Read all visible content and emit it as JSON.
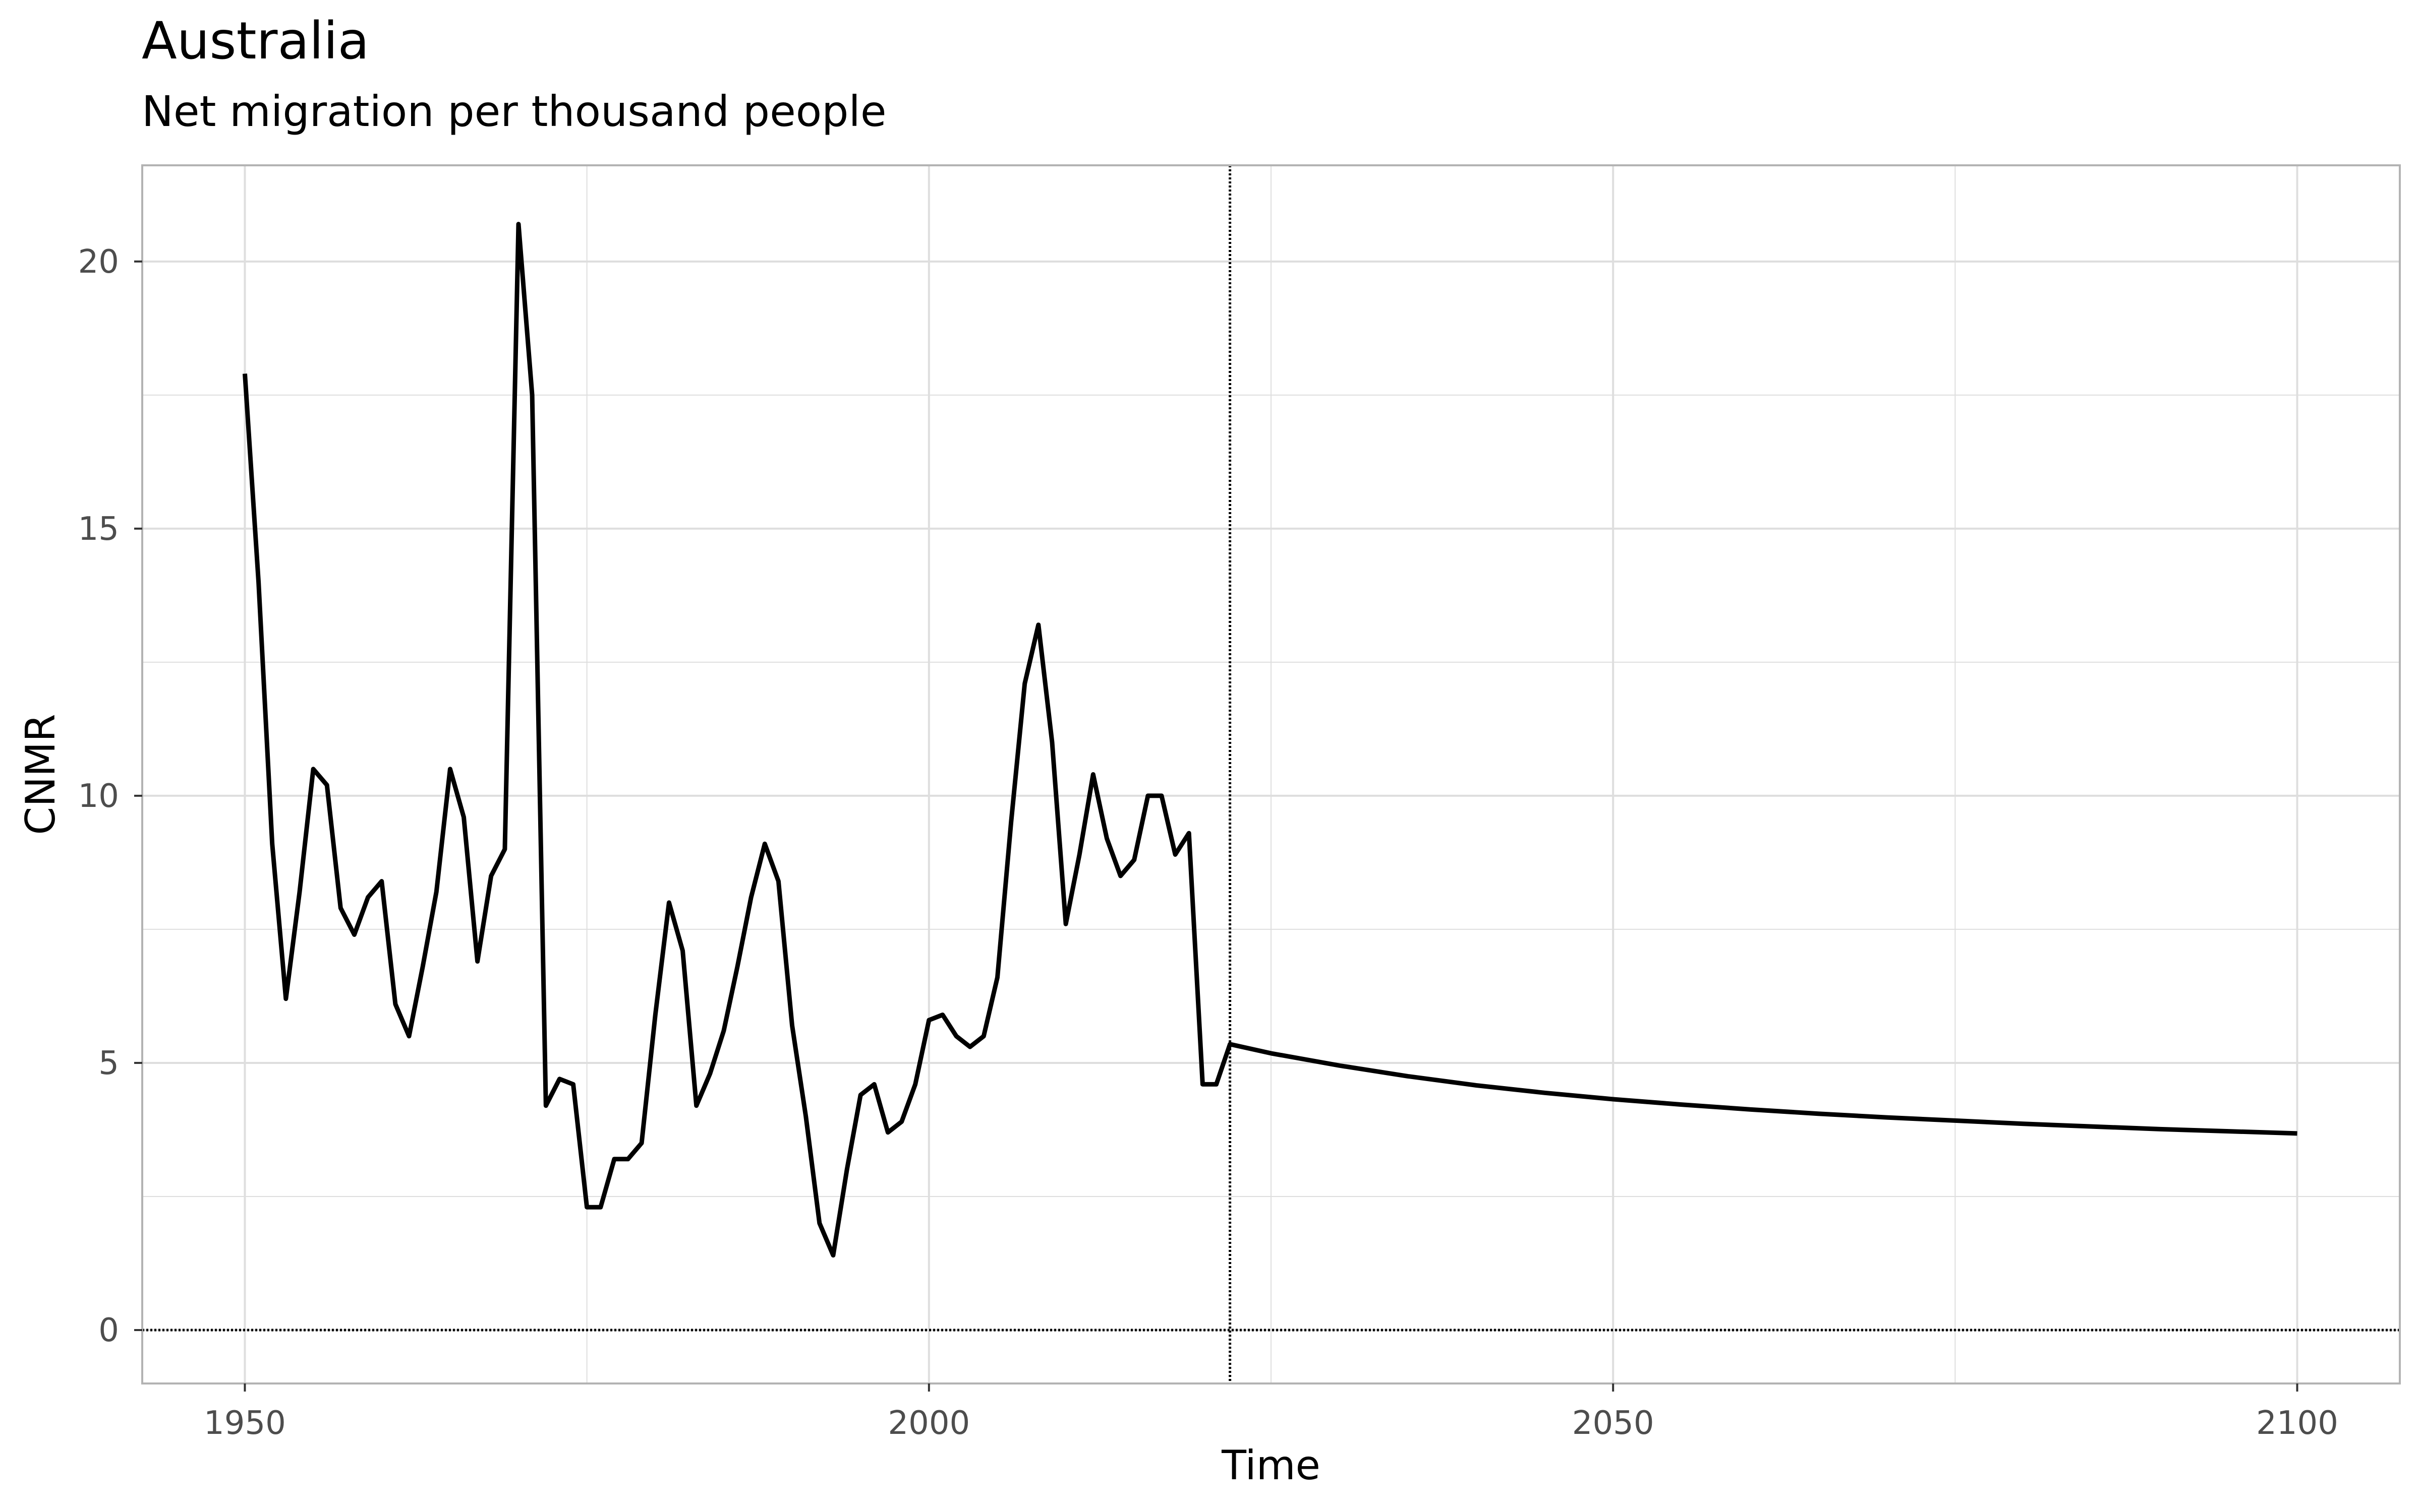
{
  "chart_data": {
    "type": "line",
    "title": "Australia",
    "subtitle": "Net migration per thousand people",
    "xlabel": "Time",
    "ylabel": "CNMR",
    "xlim": [
      1942.5,
      2107.5
    ],
    "ylim": [
      -1.0,
      21.8
    ],
    "x_ticks": [
      1950,
      2000,
      2050,
      2100
    ],
    "x_tick_labels": [
      "1950",
      "2000",
      "2050",
      "2100"
    ],
    "y_ticks": [
      0,
      5,
      10,
      15,
      20
    ],
    "y_tick_labels": [
      "0",
      "5",
      "10",
      "15",
      "20"
    ],
    "grid": true,
    "reference_lines": {
      "vertical_x": 2022,
      "horizontal_y": 0,
      "style": "dotted"
    },
    "colors": {
      "line": "#000000",
      "grid": "#dedede",
      "panel_border": "#b3b3b3"
    },
    "series": [
      {
        "values_x": [
          1950,
          1951,
          1952,
          1953,
          1954,
          1955,
          1956,
          1957,
          1958,
          1959,
          1960,
          1961,
          1962,
          1963,
          1964,
          1965,
          1966,
          1967,
          1968,
          1969,
          1970,
          1971,
          1972,
          1973,
          1974,
          1975,
          1976,
          1977,
          1978,
          1979,
          1980,
          1981,
          1982,
          1983,
          1984,
          1985,
          1986,
          1987,
          1988,
          1989,
          1990,
          1991,
          1992,
          1993,
          1994,
          1995,
          1996,
          1997,
          1998,
          1999,
          2000,
          2001,
          2002,
          2003,
          2004,
          2005,
          2006,
          2007,
          2008,
          2009,
          2010,
          2011,
          2012,
          2013,
          2014,
          2015,
          2016,
          2017,
          2018,
          2019,
          2020,
          2021,
          2022,
          2025,
          2030,
          2035,
          2040,
          2045,
          2050,
          2055,
          2060,
          2065,
          2070,
          2075,
          2080,
          2085,
          2090,
          2095,
          2100
        ],
        "values_y": [
          17.9,
          14.0,
          9.1,
          6.2,
          8.2,
          10.5,
          10.2,
          7.9,
          7.4,
          8.1,
          8.4,
          6.1,
          5.5,
          6.8,
          8.2,
          10.5,
          9.6,
          6.9,
          8.5,
          9.0,
          20.7,
          17.5,
          4.2,
          4.7,
          4.6,
          2.3,
          2.3,
          3.2,
          3.2,
          3.5,
          5.9,
          8.0,
          7.1,
          4.2,
          4.8,
          5.6,
          6.8,
          8.1,
          9.1,
          8.4,
          5.7,
          4.0,
          2.0,
          1.4,
          3.0,
          4.4,
          4.6,
          3.7,
          3.9,
          4.6,
          5.8,
          5.9,
          5.5,
          5.3,
          5.5,
          6.6,
          9.5,
          12.1,
          13.2,
          11.0,
          7.6,
          8.9,
          10.4,
          9.2,
          8.5,
          8.8,
          10.0,
          10.0,
          8.9,
          9.3,
          4.6,
          4.6,
          5.35,
          5.18,
          4.95,
          4.75,
          4.58,
          4.44,
          4.32,
          4.22,
          4.13,
          4.05,
          3.98,
          3.92,
          3.86,
          3.81,
          3.76,
          3.72,
          3.68
        ]
      }
    ]
  }
}
